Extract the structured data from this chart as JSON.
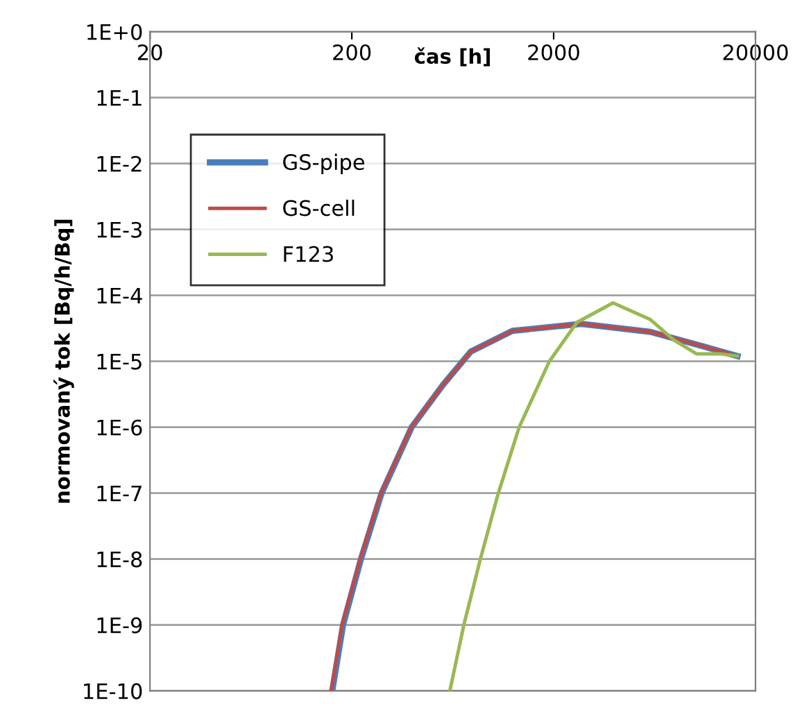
{
  "chart_data": {
    "type": "line",
    "xlabel": "čas [h]",
    "ylabel": "normovaný tok [Bq/h/Bq]",
    "log": "xy",
    "xlim": [
      20,
      20000
    ],
    "xticks": [
      20,
      200,
      2000,
      20000
    ],
    "ylim": [
      1e-10,
      1
    ],
    "yticks": [
      {
        "value": 1e-10,
        "label": "1E-10"
      },
      {
        "value": 1e-09,
        "label": "1E-9"
      },
      {
        "value": 1e-08,
        "label": "1E-8"
      },
      {
        "value": 1e-07,
        "label": "1E-7"
      },
      {
        "value": 1e-06,
        "label": "1E-6"
      },
      {
        "value": 1e-05,
        "label": "1E-5"
      },
      {
        "value": 0.0001,
        "label": "1E-4"
      },
      {
        "value": 0.001,
        "label": "1E-3"
      },
      {
        "value": 0.01,
        "label": "1E-2"
      },
      {
        "value": 0.1,
        "label": "1E-1"
      },
      {
        "value": 1,
        "label": "1E+0"
      }
    ],
    "grid": "y",
    "legend": "top left",
    "marker": "none",
    "line_style": "solid",
    "series": [
      {
        "name": "GS-pipe",
        "color": "#4a7ebb",
        "x": [
          160,
          181,
          222,
          281,
          396,
          566,
          776,
          1250,
          2740,
          6030,
          10200,
          16300
        ],
        "values": [
          1e-10,
          1e-09,
          1e-08,
          1e-07,
          1e-06,
          4.4e-06,
          1.4e-05,
          2.9e-05,
          3.7e-05,
          2.8e-05,
          1.8e-05,
          1.2e-05
        ]
      },
      {
        "name": "GS-cell",
        "color": "#be4b48",
        "x": [
          158,
          179,
          220,
          279,
          394,
          566,
          776,
          1250,
          2740,
          6030,
          10200,
          16300
        ],
        "values": [
          1e-10,
          1e-09,
          1e-08,
          1e-07,
          1e-06,
          4.4e-06,
          1.4e-05,
          2.9e-05,
          3.7e-05,
          2.8e-05,
          1.8e-05,
          1.2e-05
        ]
      },
      {
        "name": "F123",
        "color": "#98b954",
        "x": [
          612,
          718,
          867,
          1064,
          1349,
          1905,
          2610,
          3940,
          6030,
          7890,
          10200,
          13300,
          16300
        ],
        "values": [
          1e-10,
          1e-09,
          1e-08,
          1e-07,
          1e-06,
          1e-05,
          3.9e-05,
          7.7e-05,
          4.3e-05,
          2.1e-05,
          1.3e-05,
          1.3e-05,
          1.2e-05
        ]
      }
    ]
  }
}
